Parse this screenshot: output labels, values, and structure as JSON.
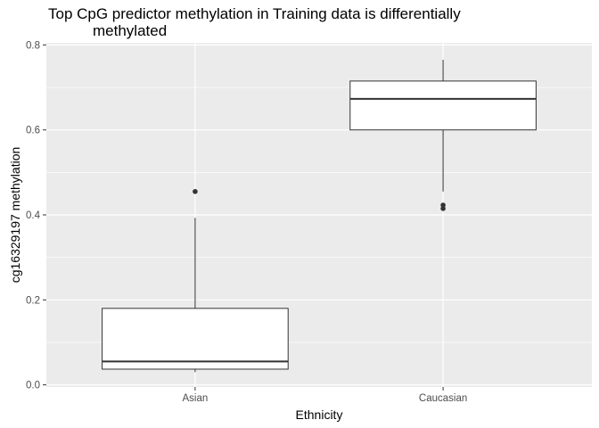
{
  "chart_data": {
    "type": "boxplot",
    "title_lines": [
      "Top CpG predictor methylation in Training data is differentially",
      "methylated"
    ],
    "xlabel": "Ethnicity",
    "ylabel": "cg16329197 methylation",
    "ylim": [
      -0.005,
      0.805
    ],
    "yticks": [
      0.0,
      0.2,
      0.4,
      0.6,
      0.8
    ],
    "ytick_labels": [
      "0.0",
      "0.2",
      "0.4",
      "0.6",
      "0.8"
    ],
    "grid": true,
    "categories": [
      "Asian",
      "Caucasian"
    ],
    "boxes": [
      {
        "category": "Asian",
        "whisker_low": 0.03,
        "q1": 0.037,
        "median": 0.055,
        "q3": 0.18,
        "whisker_high": 0.393,
        "outliers": [
          0.455
        ]
      },
      {
        "category": "Caucasian",
        "whisker_low": 0.455,
        "q1": 0.6,
        "median": 0.673,
        "q3": 0.715,
        "whisker_high": 0.765,
        "outliers": [
          0.423,
          0.415
        ]
      }
    ]
  }
}
